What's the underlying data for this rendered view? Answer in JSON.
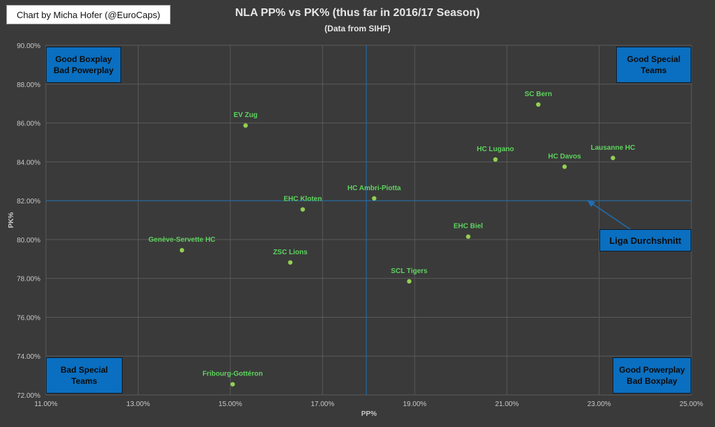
{
  "credit": "Chart by Micha Hofer (@EuroCaps)",
  "chart_data": {
    "type": "scatter",
    "title": "NLA PP% vs PK% (thus far in 2016/17 Season)",
    "subtitle": "(Data from SIHF)",
    "xlabel": "PP%",
    "ylabel": "PK%",
    "xlim": [
      11.0,
      25.0
    ],
    "ylim": [
      72.0,
      90.0
    ],
    "x_ticks": [
      "11.00%",
      "13.00%",
      "15.00%",
      "17.00%",
      "19.00%",
      "21.00%",
      "23.00%",
      "25.00%"
    ],
    "y_ticks": [
      "72.00%",
      "74.00%",
      "76.00%",
      "78.00%",
      "80.00%",
      "82.00%",
      "84.00%",
      "86.00%",
      "88.00%",
      "90.00%"
    ],
    "grid": true,
    "point_color": "#92d050",
    "label_color": "#5fd35f",
    "points": [
      {
        "label": "SC Bern",
        "x": 21.68,
        "y": 86.95
      },
      {
        "label": "EV Zug",
        "x": 15.33,
        "y": 85.87
      },
      {
        "label": "HC Lugano",
        "x": 20.75,
        "y": 84.12
      },
      {
        "label": "HC Davos",
        "x": 22.25,
        "y": 83.75
      },
      {
        "label": "Lausanne HC",
        "x": 23.3,
        "y": 84.2
      },
      {
        "label": "HC Ambri-Piotta",
        "x": 18.12,
        "y": 82.12
      },
      {
        "label": "EHC Kloten",
        "x": 16.57,
        "y": 81.55
      },
      {
        "label": "EHC Biel",
        "x": 20.16,
        "y": 80.15
      },
      {
        "label": "Genève-Servette HC",
        "x": 13.95,
        "y": 79.45
      },
      {
        "label": "ZSC Lions",
        "x": 16.3,
        "y": 78.82
      },
      {
        "label": "SCL Tigers",
        "x": 18.88,
        "y": 77.85
      },
      {
        "label": "Fribourg-Gottéron",
        "x": 15.05,
        "y": 72.55
      }
    ],
    "reference_lines": {
      "x": 17.95,
      "y": 82.0,
      "color": "#1f6fb4"
    },
    "annotation": "Liga Durchshnitt",
    "quadrants": {
      "top_left": [
        "Good Boxplay",
        "Bad Powerplay"
      ],
      "top_right": [
        "Good Special",
        "Teams"
      ],
      "bottom_left": [
        "Bad Special",
        "Teams"
      ],
      "bottom_right": [
        "Good Powerplay",
        "Bad Boxplay"
      ]
    }
  }
}
